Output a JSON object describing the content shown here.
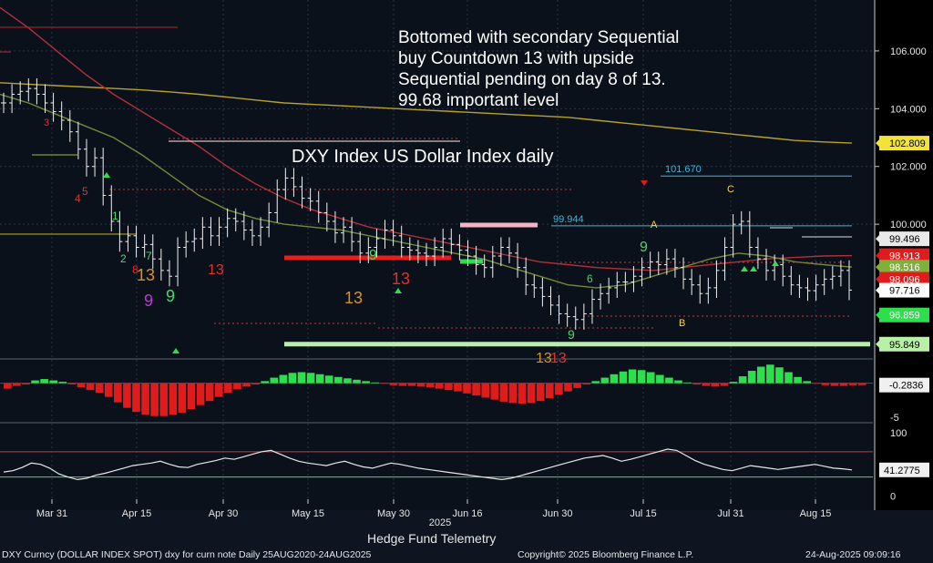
{
  "annotation_text": "Bottomed with secondary Sequential\nbuy Countdown 13 with upside\nSequential pending on day 8 of 13.\n99.68 important level",
  "credit": "Hedge Fund Telemetry",
  "footer": {
    "left": "DXY Curncy (DOLLAR INDEX SPOT) dxy for curn note  Daily 25AUG2020-24AUG2025",
    "center": "Copyright© 2025 Bloomberg Finance L.P.",
    "right": "24-Aug-2025 09:09:16"
  },
  "colors": {
    "background": "#0b111b",
    "ma_long": "#b8a22a",
    "ma_mid": "#b1303a",
    "ma_short": "#6f8a3a",
    "up": "#2be04a",
    "down": "#e01b1b",
    "setup_green": "#46d96a",
    "setup_red": "#e0302a",
    "tdst": "#f0f0f0"
  },
  "chart_data": [
    {
      "type": "line",
      "title": "DXY Index US Dollar Index daily",
      "xlabel": "",
      "ylabel": "",
      "x_ticks": [
        "Mar 31",
        "Apr 15",
        "Apr 30",
        "May 15",
        "May 30",
        "Jun 16",
        "Jun 30",
        "Jul 15",
        "Jul 31",
        "Aug 15"
      ],
      "x_year": "2025",
      "y_ticks": [
        106.0,
        104.0,
        102.0,
        100.0
      ],
      "ylim": [
        95.4,
        107.7
      ],
      "grid": true,
      "price": [
        104.2,
        104.5,
        104.6,
        104.7,
        104.5,
        104.2,
        103.9,
        103.6,
        103.2,
        102.6,
        102.0,
        102.3,
        101.0,
        100.1,
        99.4,
        99.6,
        99.2,
        99.3,
        98.8,
        98.4,
        98.2,
        99.2,
        99.4,
        99.5,
        99.9,
        99.6,
        99.9,
        100.2,
        100.1,
        99.8,
        99.6,
        99.9,
        100.4,
        101.2,
        101.6,
        101.3,
        100.9,
        100.8,
        100.4,
        100.1,
        99.7,
        99.9,
        99.4,
        99.0,
        99.2,
        99.5,
        99.8,
        99.6,
        99.2,
        99.1,
        99.0,
        98.9,
        99.2,
        99.5,
        99.3,
        99.1,
        98.9,
        98.6,
        98.5,
        98.9,
        99.2,
        99.0,
        98.5,
        97.9,
        97.8,
        97.5,
        97.2,
        96.9,
        96.8,
        96.7,
        96.9,
        97.4,
        97.6,
        97.8,
        98.0,
        98.0,
        98.2,
        98.5,
        98.7,
        98.6,
        98.8,
        98.5,
        98.1,
        97.9,
        97.6,
        97.8,
        98.4,
        99.2,
        100.0,
        100.1,
        99.2,
        98.8,
        98.4,
        98.6,
        98.2,
        97.9,
        97.8,
        97.7,
        97.9,
        98.1,
        98.2,
        98.4,
        97.72
      ],
      "series": [
        {
          "name": "",
          "last": 102.809,
          "values": [
            104.9,
            104.85,
            104.8,
            104.75,
            104.7,
            104.65,
            104.58,
            104.5,
            104.4,
            104.3,
            104.2,
            104.15,
            104.1,
            104.05,
            104.0,
            103.95,
            103.9,
            103.85,
            103.8,
            103.75,
            103.7,
            103.6,
            103.5,
            103.4,
            103.3,
            103.2,
            103.1,
            103.0,
            102.9,
            102.85,
            102.809
          ]
        },
        {
          "name": "",
          "last": 98.913,
          "values": [
            107.5,
            106.8,
            106.0,
            105.2,
            104.5,
            103.9,
            103.3,
            102.7,
            102.0,
            101.4,
            100.9,
            100.5,
            100.2,
            99.9,
            99.7,
            99.5,
            99.3,
            99.1,
            98.9,
            98.7,
            98.6,
            98.5,
            98.45,
            98.4,
            98.5,
            98.6,
            98.7,
            98.8,
            98.85,
            98.9,
            98.913
          ]
        },
        {
          "name": "",
          "last": 98.516,
          "values": [
            104.5,
            104.2,
            103.8,
            103.4,
            103.0,
            102.4,
            101.7,
            101.0,
            100.5,
            100.2,
            100.0,
            99.9,
            99.8,
            99.6,
            99.4,
            99.2,
            99.0,
            98.8,
            98.5,
            98.2,
            97.9,
            97.8,
            97.9,
            98.2,
            98.5,
            98.8,
            99.0,
            98.9,
            98.7,
            98.6,
            98.516
          ]
        }
      ],
      "levels": [
        {
          "label": "101.670",
          "value": 101.67
        },
        {
          "label": "99.944",
          "value": 99.944
        },
        {
          "label": "",
          "value": 95.849
        }
      ],
      "price_labels": [
        "102.809",
        "99.496",
        "98.913",
        "98.516",
        "98.096",
        "97.716",
        "96.859",
        "95.849"
      ],
      "sequential_labels": [
        "13",
        "13",
        "9",
        "13",
        "13",
        "9",
        "9",
        "13",
        "13",
        "9",
        "9",
        "4",
        "5",
        "7",
        "8",
        "6",
        "3",
        "2",
        "1",
        "C",
        "A",
        "B"
      ]
    },
    {
      "type": "bar",
      "title": "",
      "y_ticks": [
        -5
      ],
      "last_label": "-0.2836",
      "values": [
        -0.8,
        -0.4,
        -0.2,
        0.4,
        0.6,
        0.4,
        0.2,
        -0.2,
        -0.6,
        -1.0,
        -1.4,
        -2.0,
        -2.8,
        -3.6,
        -4.2,
        -4.6,
        -4.8,
        -4.8,
        -4.6,
        -4.3,
        -3.8,
        -3.2,
        -2.6,
        -2.0,
        -1.4,
        -0.9,
        -0.5,
        -0.2,
        0.3,
        0.8,
        1.2,
        1.5,
        1.6,
        1.5,
        1.3,
        1.1,
        0.9,
        0.7,
        0.5,
        0.3,
        0.1,
        -0.1,
        -0.3,
        -0.4,
        -0.4,
        -0.5,
        -0.6,
        -0.8,
        -1.0,
        -1.2,
        -1.5,
        -1.8,
        -2.1,
        -2.4,
        -2.7,
        -2.9,
        -3.0,
        -2.9,
        -2.6,
        -2.2,
        -1.7,
        -1.2,
        -0.7,
        -0.2,
        0.3,
        0.8,
        1.3,
        1.7,
        2.0,
        1.9,
        1.6,
        1.2,
        0.8,
        0.4,
        0.1,
        -0.2,
        -0.4,
        -0.5,
        -0.4,
        0.2,
        1.0,
        1.8,
        2.4,
        2.7,
        2.3,
        1.6,
        0.9,
        0.3,
        -0.1,
        -0.3,
        -0.4,
        -0.4,
        -0.3,
        -0.28
      ]
    },
    {
      "type": "line",
      "title": "",
      "y_ticks": [
        100,
        0
      ],
      "ylim": [
        -5,
        110
      ],
      "bands": [
        70,
        30
      ],
      "last_label": "41.2775",
      "values": [
        38,
        40,
        45,
        52,
        50,
        44,
        35,
        30,
        26,
        28,
        33,
        36,
        40,
        44,
        48,
        50,
        52,
        55,
        50,
        46,
        45,
        50,
        53,
        56,
        60,
        58,
        62,
        66,
        70,
        72,
        66,
        60,
        55,
        52,
        50,
        48,
        52,
        55,
        50,
        46,
        44,
        48,
        52,
        50,
        47,
        44,
        42,
        40,
        38,
        36,
        34,
        32,
        30,
        28,
        26,
        28,
        32,
        36,
        40,
        44,
        48,
        52,
        56,
        60,
        62,
        64,
        60,
        55,
        58,
        62,
        66,
        70,
        74,
        72,
        64,
        56,
        50,
        46,
        42,
        40,
        44,
        48,
        46,
        44,
        42,
        44,
        46,
        48,
        50,
        47,
        44,
        43,
        41.2775
      ]
    }
  ]
}
